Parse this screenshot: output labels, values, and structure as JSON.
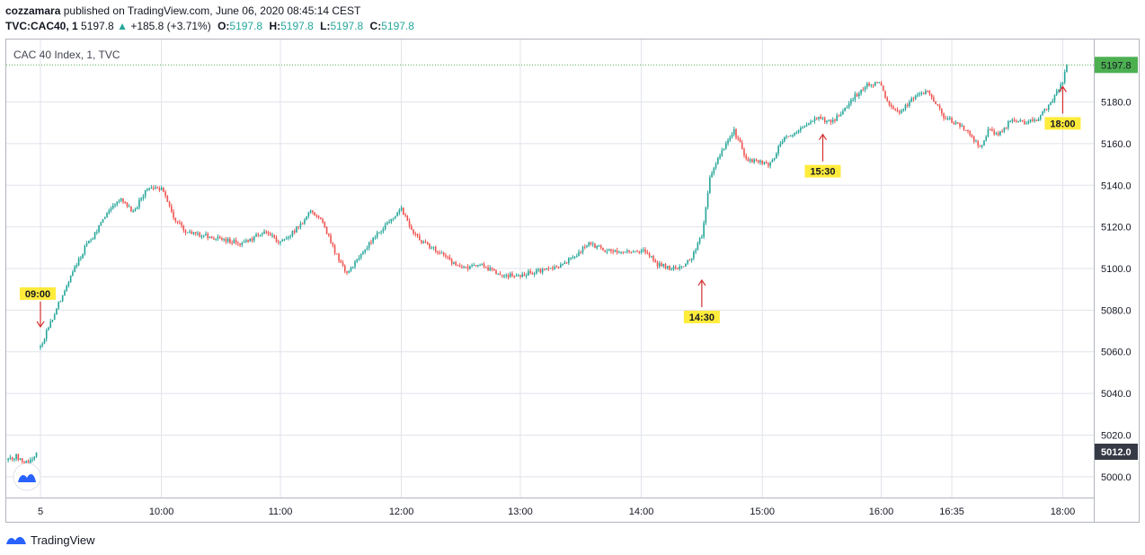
{
  "header": {
    "author": "cozzamara",
    "published_text": "published on TradingView.com, June 06, 2020 08:45:14 CEST",
    "symbol": "TVC:CAC40, 1",
    "last": "5197.8",
    "change_arrow": "▲",
    "change": "+185.8 (+3.71%)",
    "o_label": "O:",
    "o_value": "5197.8",
    "h_label": "H:",
    "h_value": "5197.8",
    "l_label": "L:",
    "l_value": "5197.8",
    "c_label": "C:",
    "c_value": "5197.8"
  },
  "footer": {
    "brand": "TradingView"
  },
  "colors": {
    "up": "#26a69a",
    "down": "#ef5350",
    "grid": "#e1e3eb",
    "annotation_bg": "#ffeb3b",
    "arrow": "#d32f2f",
    "last_price": "#4caf50",
    "prev_close": "#363a45"
  },
  "chart_data": {
    "type": "candlestick",
    "title": "CAC 40 Index, 1, TVC",
    "ylim": [
      4990,
      5210
    ],
    "y_ticks": [
      5000,
      5020,
      5040,
      5060,
      5080,
      5100,
      5120,
      5140,
      5160,
      5180
    ],
    "x_ticks": [
      {
        "label": "5",
        "t": 0
      },
      {
        "label": "10:00",
        "t": 60
      },
      {
        "label": "11:00",
        "t": 119
      },
      {
        "label": "12:00",
        "t": 179
      },
      {
        "label": "13:00",
        "t": 238
      },
      {
        "label": "14:00",
        "t": 298
      },
      {
        "label": "15:00",
        "t": 358
      },
      {
        "label": "16:00",
        "t": 417
      },
      {
        "label": "16:35",
        "t": 452
      },
      {
        "label": "18:00",
        "t": 507
      }
    ],
    "last_price_label": "5197.8",
    "last_price": 5197.8,
    "prev_close_label": "5012.0",
    "prev_close": 5012.0,
    "annotations": [
      {
        "label": "09:00",
        "t": 0,
        "price": 5072,
        "direction": "down"
      },
      {
        "label": "14:30",
        "t": 328,
        "price": 5097,
        "direction": "up"
      },
      {
        "label": "15:30",
        "t": 388,
        "price": 5167,
        "direction": "up"
      },
      {
        "label": "18:00",
        "t": 507,
        "price": 5190,
        "direction": "up"
      }
    ],
    "prev_session_keypoints": [
      [
        -16,
        5008
      ],
      [
        -12,
        5010
      ],
      [
        -8,
        5006
      ],
      [
        -4,
        5009
      ],
      [
        -2,
        5012
      ]
    ],
    "keypoints": [
      [
        0,
        5062
      ],
      [
        4,
        5072
      ],
      [
        10,
        5085
      ],
      [
        16,
        5098
      ],
      [
        22,
        5110
      ],
      [
        28,
        5118
      ],
      [
        34,
        5128
      ],
      [
        40,
        5133
      ],
      [
        46,
        5127
      ],
      [
        52,
        5137
      ],
      [
        60,
        5139
      ],
      [
        66,
        5125
      ],
      [
        72,
        5118
      ],
      [
        80,
        5116
      ],
      [
        90,
        5114
      ],
      [
        100,
        5112
      ],
      [
        112,
        5118
      ],
      [
        118,
        5112
      ],
      [
        126,
        5118
      ],
      [
        134,
        5127
      ],
      [
        140,
        5122
      ],
      [
        146,
        5108
      ],
      [
        152,
        5098
      ],
      [
        158,
        5105
      ],
      [
        166,
        5116
      ],
      [
        174,
        5124
      ],
      [
        179,
        5129
      ],
      [
        184,
        5118
      ],
      [
        190,
        5112
      ],
      [
        198,
        5108
      ],
      [
        208,
        5100
      ],
      [
        218,
        5102
      ],
      [
        228,
        5097
      ],
      [
        238,
        5097
      ],
      [
        248,
        5099
      ],
      [
        258,
        5101
      ],
      [
        266,
        5107
      ],
      [
        272,
        5112
      ],
      [
        280,
        5109
      ],
      [
        292,
        5108
      ],
      [
        300,
        5108
      ],
      [
        306,
        5102
      ],
      [
        314,
        5100
      ],
      [
        320,
        5102
      ],
      [
        324,
        5107
      ],
      [
        328,
        5116
      ],
      [
        332,
        5143
      ],
      [
        336,
        5152
      ],
      [
        340,
        5160
      ],
      [
        344,
        5166
      ],
      [
        350,
        5153
      ],
      [
        356,
        5151
      ],
      [
        362,
        5150
      ],
      [
        368,
        5162
      ],
      [
        374,
        5165
      ],
      [
        380,
        5170
      ],
      [
        386,
        5172
      ],
      [
        392,
        5170
      ],
      [
        398,
        5176
      ],
      [
        404,
        5183
      ],
      [
        410,
        5188
      ],
      [
        416,
        5189
      ],
      [
        420,
        5180
      ],
      [
        426,
        5175
      ],
      [
        432,
        5181
      ],
      [
        440,
        5185
      ],
      [
        448,
        5173
      ],
      [
        454,
        5170
      ],
      [
        460,
        5166
      ],
      [
        466,
        5158
      ],
      [
        470,
        5166
      ],
      [
        476,
        5165
      ],
      [
        482,
        5172
      ],
      [
        488,
        5170
      ],
      [
        494,
        5171
      ],
      [
        500,
        5178
      ],
      [
        504,
        5185
      ],
      [
        507,
        5190
      ],
      [
        509,
        5197.8
      ]
    ]
  }
}
